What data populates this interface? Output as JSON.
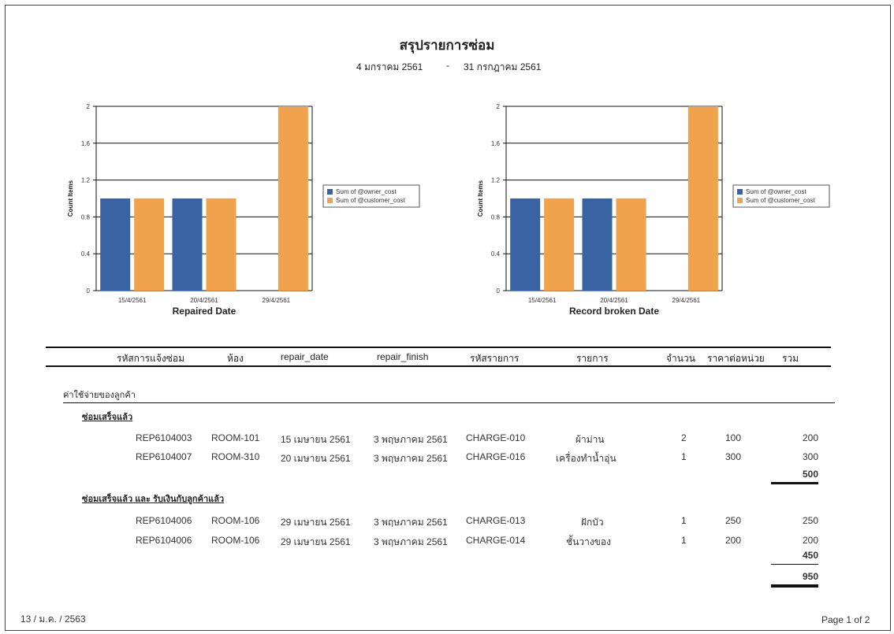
{
  "report": {
    "title": "สรุปรายการซ่อม",
    "date_from": "4 มกราคม 2561",
    "date_sep": "-",
    "date_to": "31 กรกฎาคม 2561"
  },
  "chart_data": [
    {
      "type": "bar",
      "categories": [
        "15/4/2561",
        "20/4/2561",
        "29/4/2561"
      ],
      "series": [
        {
          "name": "Sum of @owner_cost",
          "values": [
            1,
            1,
            0
          ],
          "color": "#3a63a4"
        },
        {
          "name": "Sum of @customer_cost",
          "values": [
            1,
            1,
            2
          ],
          "color": "#f0a24d"
        }
      ],
      "xlabel": "Repaired Date",
      "ylabel": "Count Items",
      "ylim": [
        0,
        2
      ],
      "yticks": [
        "0",
        "0.4",
        "0.8",
        "1.2",
        "1.6",
        "2"
      ],
      "grid": true,
      "legend": "right"
    },
    {
      "type": "bar",
      "categories": [
        "15/4/2561",
        "20/4/2561",
        "29/4/2561"
      ],
      "series": [
        {
          "name": "Sum of @owner_cost",
          "values": [
            1,
            1,
            0
          ],
          "color": "#3a63a4"
        },
        {
          "name": "Sum of @customer_cost",
          "values": [
            1,
            1,
            2
          ],
          "color": "#f0a24d"
        }
      ],
      "xlabel": "Record broken Date",
      "ylabel": "Count Items",
      "ylim": [
        0,
        2
      ],
      "yticks": [
        "0",
        "0.4",
        "0.8",
        "1.2",
        "1.6",
        "2"
      ],
      "grid": true,
      "legend": "right"
    }
  ],
  "table": {
    "headers": [
      "รหัสการแจ้งซ่อม",
      "ห้อง",
      "repair_date",
      "repair_finish",
      "รหัสรายการ",
      "รายการ",
      "จำนวน",
      "ราคาต่อหน่วย",
      "รวม"
    ],
    "section_label": "ค่าใช้จ่ายของลูกค้า",
    "groups": [
      {
        "label": "ซ่อมเสร็จแล้ว",
        "rows": [
          [
            "REP6104003",
            "ROOM-101",
            "15 เมษายน 2561",
            "3 พฤษภาคม 2561",
            "CHARGE-010",
            "ผ้าม่าน",
            "2",
            "100",
            "200"
          ],
          [
            "REP6104007",
            "ROOM-310",
            "20 เมษายน 2561",
            "3 พฤษภาคม 2561",
            "CHARGE-016",
            "เครื่องทำน้ำอุ่น",
            "1",
            "300",
            "300"
          ]
        ],
        "subtotal": "500"
      },
      {
        "label": "ซ่อมเสร็จแล้ว และ รับเงินกับลูกค้าแล้ว",
        "rows": [
          [
            "REP6104006",
            "ROOM-106",
            "29 เมษายน 2561",
            "3 พฤษภาคม 2561",
            "CHARGE-013",
            "ฝักบัว",
            "1",
            "250",
            "250"
          ],
          [
            "REP6104006",
            "ROOM-106",
            "29 เมษายน 2561",
            "3 พฤษภาคม 2561",
            "CHARGE-014",
            "ชั้นวางของ",
            "1",
            "200",
            "200"
          ]
        ],
        "subtotal": "450"
      }
    ],
    "grand_total": "950"
  },
  "footer": {
    "print_date": "13 / ม.ค. / 2563",
    "page": "Page 1 of 2"
  }
}
